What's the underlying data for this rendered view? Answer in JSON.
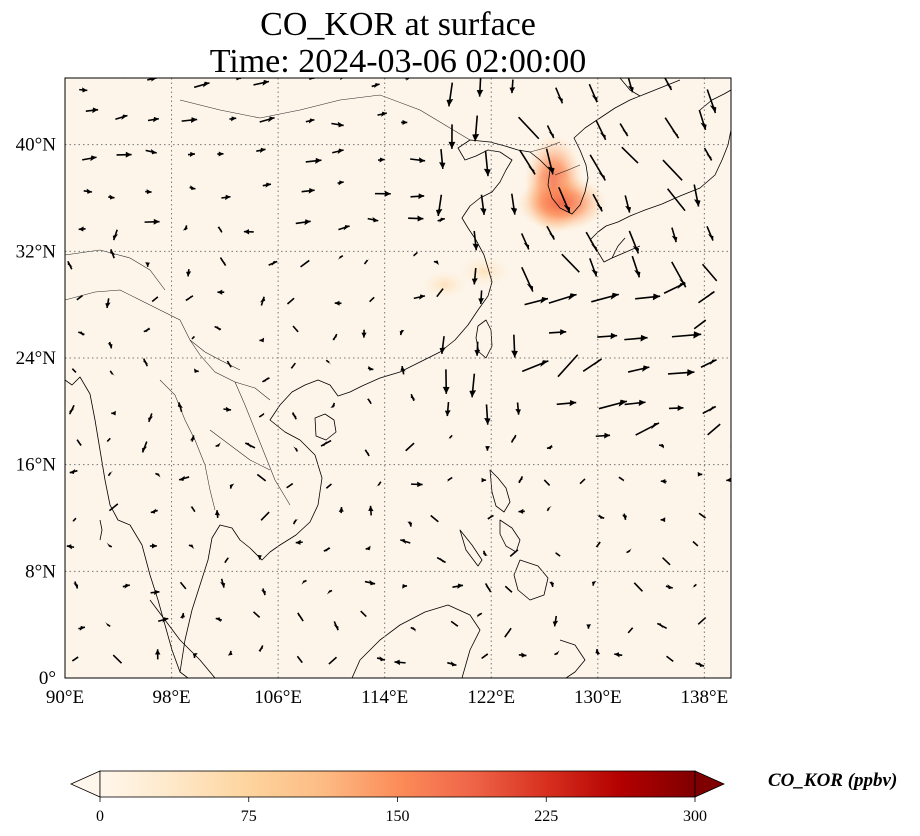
{
  "title": {
    "line1": "CO_KOR at surface",
    "line2": "Time: 2024-03-06 02:00:00"
  },
  "map": {
    "extent": {
      "lon": [
        90,
        140
      ],
      "lat": [
        0,
        45
      ]
    },
    "background_color": "#fdf5ea",
    "coastline_color": "#000000",
    "gridline_style": "dotted",
    "gridline_color": "#777777",
    "lon_ticks": [
      {
        "value": 90,
        "label": "90°E"
      },
      {
        "value": 98,
        "label": "98°E"
      },
      {
        "value": 106,
        "label": "106°E"
      },
      {
        "value": 114,
        "label": "114°E"
      },
      {
        "value": 122,
        "label": "122°E"
      },
      {
        "value": 130,
        "label": "130°E"
      },
      {
        "value": 138,
        "label": "138°E"
      }
    ],
    "lat_ticks": [
      {
        "value": 0,
        "label": "0°"
      },
      {
        "value": 8,
        "label": "8°N"
      },
      {
        "value": 16,
        "label": "16°N"
      },
      {
        "value": 24,
        "label": "24°N"
      },
      {
        "value": 32,
        "label": "32°N"
      },
      {
        "value": 40,
        "label": "40°N"
      }
    ],
    "concentration_hotspots": [
      {
        "lon": 126.7,
        "lat": 37.0,
        "value": 160
      },
      {
        "lon": 127.3,
        "lat": 35.6,
        "value": 90
      },
      {
        "lon": 121.5,
        "lat": 30.5,
        "value": 28
      },
      {
        "lon": 118.5,
        "lat": 29.5,
        "value": 20
      }
    ]
  },
  "colorbar": {
    "label": "CO_KOR (ppbv)",
    "cmap": "OrRd",
    "colors": [
      "#fff7ec",
      "#fee8c8",
      "#fdd49e",
      "#fdbb84",
      "#fc8d59",
      "#ef6548",
      "#d7301f",
      "#b30000",
      "#7f0000"
    ],
    "min": 0,
    "max": 300,
    "extend": "both",
    "ticks": [
      {
        "value": 0,
        "label": "0"
      },
      {
        "value": 75,
        "label": "75"
      },
      {
        "value": 150,
        "label": "150"
      },
      {
        "value": 225,
        "label": "225"
      },
      {
        "value": 300,
        "label": "300"
      }
    ]
  }
}
